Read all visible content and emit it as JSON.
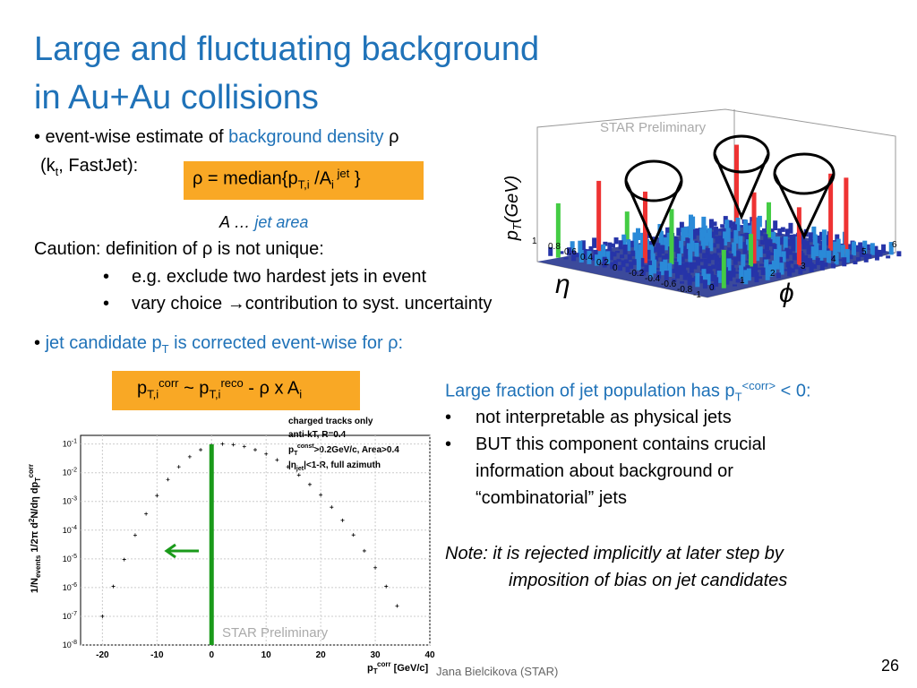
{
  "title": [
    "Large and fluctuating background",
    "in Au+Au collisions"
  ],
  "bullet1": {
    "line1": [
      "• event-wise estimate of ",
      "background density",
      " ρ"
    ],
    "line2": [
      "(k",
      "t",
      ", FastJet):"
    ]
  },
  "formula1": [
    "ρ = median{p",
    "T,i",
    " /A",
    "i",
    " jet",
    " }"
  ],
  "area_note": [
    "A … ",
    "jet area"
  ],
  "caution": {
    "text": "Caution: definition of ρ is not unique:",
    "items": [
      "e.g. exclude two hardest jets in event",
      "vary choice →contribution to syst. uncertainty"
    ]
  },
  "bullet2": [
    "• ",
    "jet candidate p",
    "T",
    " is corrected event-wise for ",
    "ρ:"
  ],
  "formula2": [
    "p",
    "T,i",
    "corr",
    " ~ p",
    "T,i",
    "reco",
    " - ρ x A",
    "i"
  ],
  "right": {
    "heading": [
      "Large fraction of jet population has p",
      "T",
      "<corr>",
      " < 0:"
    ],
    "items": [
      "not interpretable as physical jets",
      "BUT this component contains crucial",
      "information about background or",
      "“combinatorial” jets"
    ],
    "note": [
      "Note: it is rejected implicitly at later step by",
      "imposition of bias on jet candidates"
    ]
  },
  "lego": {
    "watermark": "STAR Preliminary",
    "ylabel": [
      "p",
      "T",
      "(GeV)"
    ],
    "eta_label": "η",
    "phi_label": "ϕ",
    "phi_ticks": [
      0,
      1,
      2,
      3,
      4,
      5,
      6
    ],
    "eta_ticks": [
      1,
      0.8,
      0.6,
      0.4,
      0.2,
      0,
      -0.2,
      -0.4,
      -0.6,
      -0.8,
      -1
    ]
  },
  "chart_data": {
    "type": "scatter",
    "legend": [
      "charged tracks only",
      "anti-kT, R=0.4",
      [
        "p",
        "T",
        "const",
        ">0.2GeV/c, Area>0.4"
      ],
      [
        "|η",
        "jet",
        "|<1-R, full azimuth"
      ]
    ],
    "ylabel": [
      "1/N",
      "events",
      " 1/2π d",
      "2",
      "N/dη dp",
      "T",
      "corr"
    ],
    "xlabel": [
      "p",
      "T",
      "corr",
      " [GeV/c]"
    ],
    "watermark": "STAR Preliminary",
    "xlim": [
      -24,
      40
    ],
    "xticks": [
      -20,
      -10,
      0,
      10,
      20,
      30,
      40
    ],
    "ylim": [
      1e-08,
      0.2
    ],
    "log_y": true,
    "yticks": [
      {
        "value": 0.1,
        "label": "10",
        "exp": "-1"
      },
      {
        "value": 0.01,
        "label": "10",
        "exp": "-2"
      },
      {
        "value": 0.001,
        "label": "10",
        "exp": "-3"
      },
      {
        "value": 0.0001,
        "label": "10",
        "exp": "-4"
      },
      {
        "value": 1e-05,
        "label": "10",
        "exp": "-5"
      },
      {
        "value": 1e-06,
        "label": "10",
        "exp": "-6"
      },
      {
        "value": 1e-07,
        "label": "10",
        "exp": "-7"
      },
      {
        "value": 1e-08,
        "label": "10",
        "exp": "-8"
      }
    ],
    "cut_x": 0,
    "cut_color": "#1a9a1a",
    "x": [
      -20,
      -18,
      -16,
      -14,
      -12,
      -10,
      -8,
      -6,
      -4,
      -2,
      0,
      2,
      4,
      6,
      8,
      10,
      12,
      14,
      16,
      18,
      20,
      22,
      24,
      26,
      28,
      30,
      32,
      34
    ],
    "values": [
      1e-07,
      1.1e-06,
      9.5e-06,
      6.7e-05,
      0.00037,
      0.0016,
      0.0058,
      0.016,
      0.036,
      0.063,
      0.089,
      0.1,
      0.095,
      0.082,
      0.063,
      0.045,
      0.028,
      0.016,
      0.0083,
      0.0039,
      0.0017,
      0.00063,
      0.00022,
      6.8e-05,
      1.9e-05,
      4.9e-06,
      1.1e-06,
      2.3e-07
    ]
  },
  "footer": {
    "author": "Jana Bielcikova (STAR)",
    "page": "26"
  }
}
